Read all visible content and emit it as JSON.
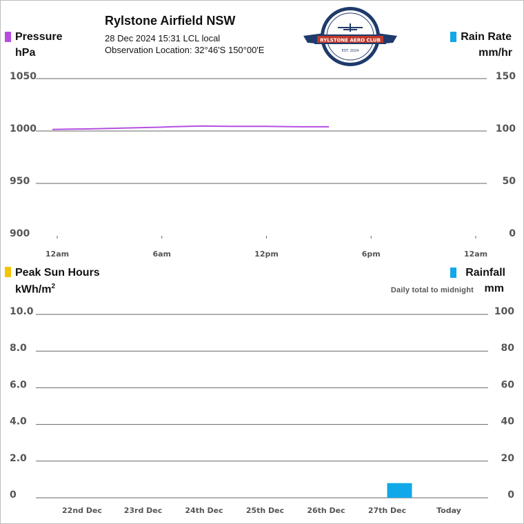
{
  "header": {
    "title": "Rylstone Airfield NSW",
    "datetime": "28 Dec 2024  15:31 LCL local",
    "location": "Observation Location: 32°46'S 150°00'E"
  },
  "logo": {
    "text": "RYLSTONE AERO CLUB",
    "est": "EST. 2024",
    "colors": {
      "ring": "#1f3a6b",
      "banner": "#c0392b"
    }
  },
  "colors": {
    "pressure": "#b44fe0",
    "rain": "#10a8e8",
    "sun": "#f5c400",
    "grid": "#666666"
  },
  "legends": {
    "pressure": {
      "name": "Pressure",
      "unit": "hPa"
    },
    "rain_rate": {
      "name": "Rain Rate",
      "unit": "mm/hr"
    },
    "sun": {
      "name": "Peak Sun Hours",
      "unit_base": "kWh/m",
      "unit_sup": "2"
    },
    "rainfall": {
      "name": "Rainfall",
      "unit": "mm",
      "note": "Daily total to midnight"
    }
  },
  "chart_data": [
    {
      "type": "line",
      "title": "",
      "left_axis": {
        "label": "Pressure hPa",
        "ticks": [
          "1050",
          "1000",
          "950",
          "900"
        ],
        "ylim": [
          900,
          1050
        ]
      },
      "right_axis": {
        "label": "Rain Rate mm/hr",
        "ticks": [
          "150",
          "100",
          "50",
          "0"
        ],
        "ylim": [
          0,
          150
        ]
      },
      "x_ticks": [
        "12am",
        "6am",
        "12pm",
        "6pm",
        "12am"
      ],
      "x_range_hours": [
        0,
        24
      ],
      "grid": true,
      "series": [
        {
          "name": "Pressure",
          "axis": "left",
          "x": [
            0.0,
            1.0,
            2.0,
            3.0,
            4.0,
            5.0,
            6.0,
            7.0,
            8.0,
            8.5,
            9.0,
            10.0,
            11.0,
            12.0,
            13.0,
            14.0,
            15.5
          ],
          "y": [
            1001.5,
            1001.8,
            1002.0,
            1002.4,
            1002.8,
            1003.2,
            1003.6,
            1004.2,
            1004.6,
            1004.8,
            1004.6,
            1004.5,
            1004.4,
            1004.4,
            1004.2,
            1004.0,
            1004.0
          ]
        }
      ]
    },
    {
      "type": "bar",
      "title": "",
      "left_axis": {
        "label": "Peak Sun Hours kWh/m2",
        "ticks": [
          "10.0",
          "8.0",
          "6.0",
          "4.0",
          "2.0",
          "0"
        ],
        "ylim": [
          0,
          10
        ]
      },
      "right_axis": {
        "label": "Rainfall mm",
        "ticks": [
          "100",
          "80",
          "60",
          "40",
          "20",
          "0"
        ],
        "ylim": [
          0,
          100
        ]
      },
      "categories": [
        "22nd Dec",
        "23rd Dec",
        "24th Dec",
        "25th Dec",
        "26th Dec",
        "27th Dec",
        "Today"
      ],
      "grid": true,
      "series": [
        {
          "name": "Peak Sun Hours",
          "axis": "left",
          "values": [
            0,
            0,
            0,
            0,
            0,
            0,
            0
          ]
        },
        {
          "name": "Rainfall",
          "axis": "right",
          "values": [
            0,
            0,
            0,
            0,
            0,
            8,
            0
          ]
        }
      ]
    }
  ]
}
